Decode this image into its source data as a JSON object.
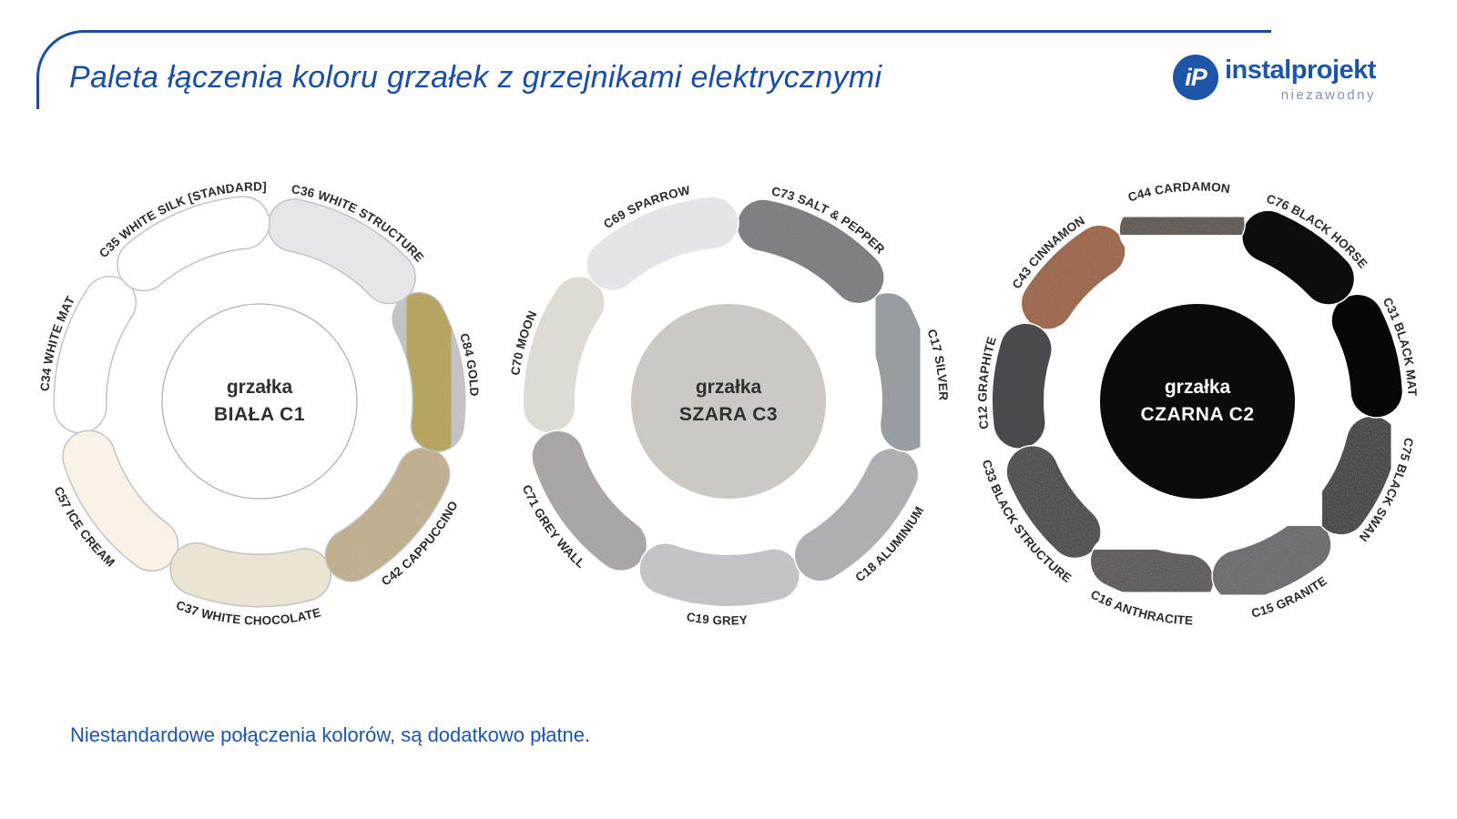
{
  "header": {
    "title": "Paleta łączenia koloru grzałek z grzejnikami elektrycznymi",
    "accent_color": "#1c4da5",
    "logo": {
      "mark": "iP",
      "name": "instalprojekt",
      "tagline": "niezawodny",
      "color": "#1d55a8",
      "tagline_color": "#8493b5"
    }
  },
  "footer": {
    "note": "Niestandardowe połączenia kolorów, są dodatkowo płatne.",
    "color": "#1d55ab"
  },
  "chart_data": [
    {
      "type": "donut-palette",
      "id": "grzalka-biala-c1",
      "center_label_line1": "grzałka",
      "center_label_line2": "BIAŁA C1",
      "center_color": "#ffffff",
      "center_text_color": "#2f2f2f",
      "center_outline": "#b3b3b3",
      "separator_color": "#c3c3c3",
      "start_angle": 311.57,
      "segments": [
        {
          "code": "C35",
          "label": "C35 WHITE SILK [STANDARD]",
          "color": "#ffffff",
          "textured": false
        },
        {
          "code": "C36",
          "label": "C36 WHITE STRUCTURE",
          "color": "#e9ebef",
          "textured": true
        },
        {
          "code": "C84",
          "label": "C84 GOLD",
          "color": "#b3a042",
          "textured": true
        },
        {
          "code": "C42",
          "label": "C42 CAPPUCCINO",
          "color": "#c0ac86",
          "textured": true
        },
        {
          "code": "C37",
          "label": "C37 WHITE CHOCOLATE",
          "color": "#ebe4d2",
          "textured": false
        },
        {
          "code": "C57",
          "label": "C57 ICE CREAM",
          "color": "#f8f3e6",
          "textured": false
        },
        {
          "code": "C34",
          "label": "C34 WHITE MAT",
          "color": "#ffffff",
          "textured": false
        }
      ]
    },
    {
      "type": "donut-palette",
      "id": "grzalka-szara-c3",
      "center_label_line1": "grzałka",
      "center_label_line2": "SZARA C3",
      "center_color": "#cac9c3",
      "center_text_color": "#2f2f2f",
      "center_outline": null,
      "separator_color": "#ffffff",
      "start_angle": 311.57,
      "segments": [
        {
          "code": "C69",
          "label": "C69 SPARROW",
          "color": "#e4e5e7",
          "textured": false
        },
        {
          "code": "C73",
          "label": "C73 SALT & PEPPER",
          "color": "#6f7173",
          "textured": true
        },
        {
          "code": "C17",
          "label": "C17 SILVER",
          "color": "#8f969a",
          "textured": true
        },
        {
          "code": "C18",
          "label": "C18 ALUMINIUM",
          "color": "#a9adaf",
          "textured": true
        },
        {
          "code": "C19",
          "label": "C19 GREY",
          "color": "#c2c5c7",
          "textured": false
        },
        {
          "code": "C71",
          "label": "C71 GREY WALL",
          "color": "#a8a7a3",
          "textured": false
        },
        {
          "code": "C70",
          "label": "C70 MOON",
          "color": "#dddbd3",
          "textured": false
        }
      ]
    },
    {
      "type": "donut-palette",
      "id": "grzalka-czarna-c2",
      "center_label_line1": "grzałka",
      "center_label_line2": "CZARNA C2",
      "center_color": "#0b0b0b",
      "center_text_color": "#ffffff",
      "center_outline": null,
      "separator_color": "#ffffff",
      "start_angle": 335,
      "segments": [
        {
          "code": "C44",
          "label": "C44 CARDAMON",
          "color": "#483f37",
          "textured": true
        },
        {
          "code": "C76",
          "label": "C76 BLACK HORSE",
          "color": "#0c0c0c",
          "textured": false
        },
        {
          "code": "C31",
          "label": "C31 BLACK MAT",
          "color": "#070707",
          "textured": false
        },
        {
          "code": "C75",
          "label": "C75 BLACK SWAN",
          "color": "#121315",
          "textured": true
        },
        {
          "code": "C15",
          "label": "C15 GRANITE",
          "color": "#565b5f",
          "textured": true
        },
        {
          "code": "C16",
          "label": "C16 ANTHRACITE",
          "color": "#454040",
          "textured": true
        },
        {
          "code": "C33",
          "label": "C33 BLACK STRUCTURE",
          "color": "#2b2827",
          "textured": true
        },
        {
          "code": "C12",
          "label": "C12 GRAPHITE",
          "color": "#4a4a4c",
          "textured": false
        },
        {
          "code": "C43",
          "label": "C43 CINNAMON",
          "color": "#96531e",
          "textured": true
        }
      ]
    }
  ]
}
